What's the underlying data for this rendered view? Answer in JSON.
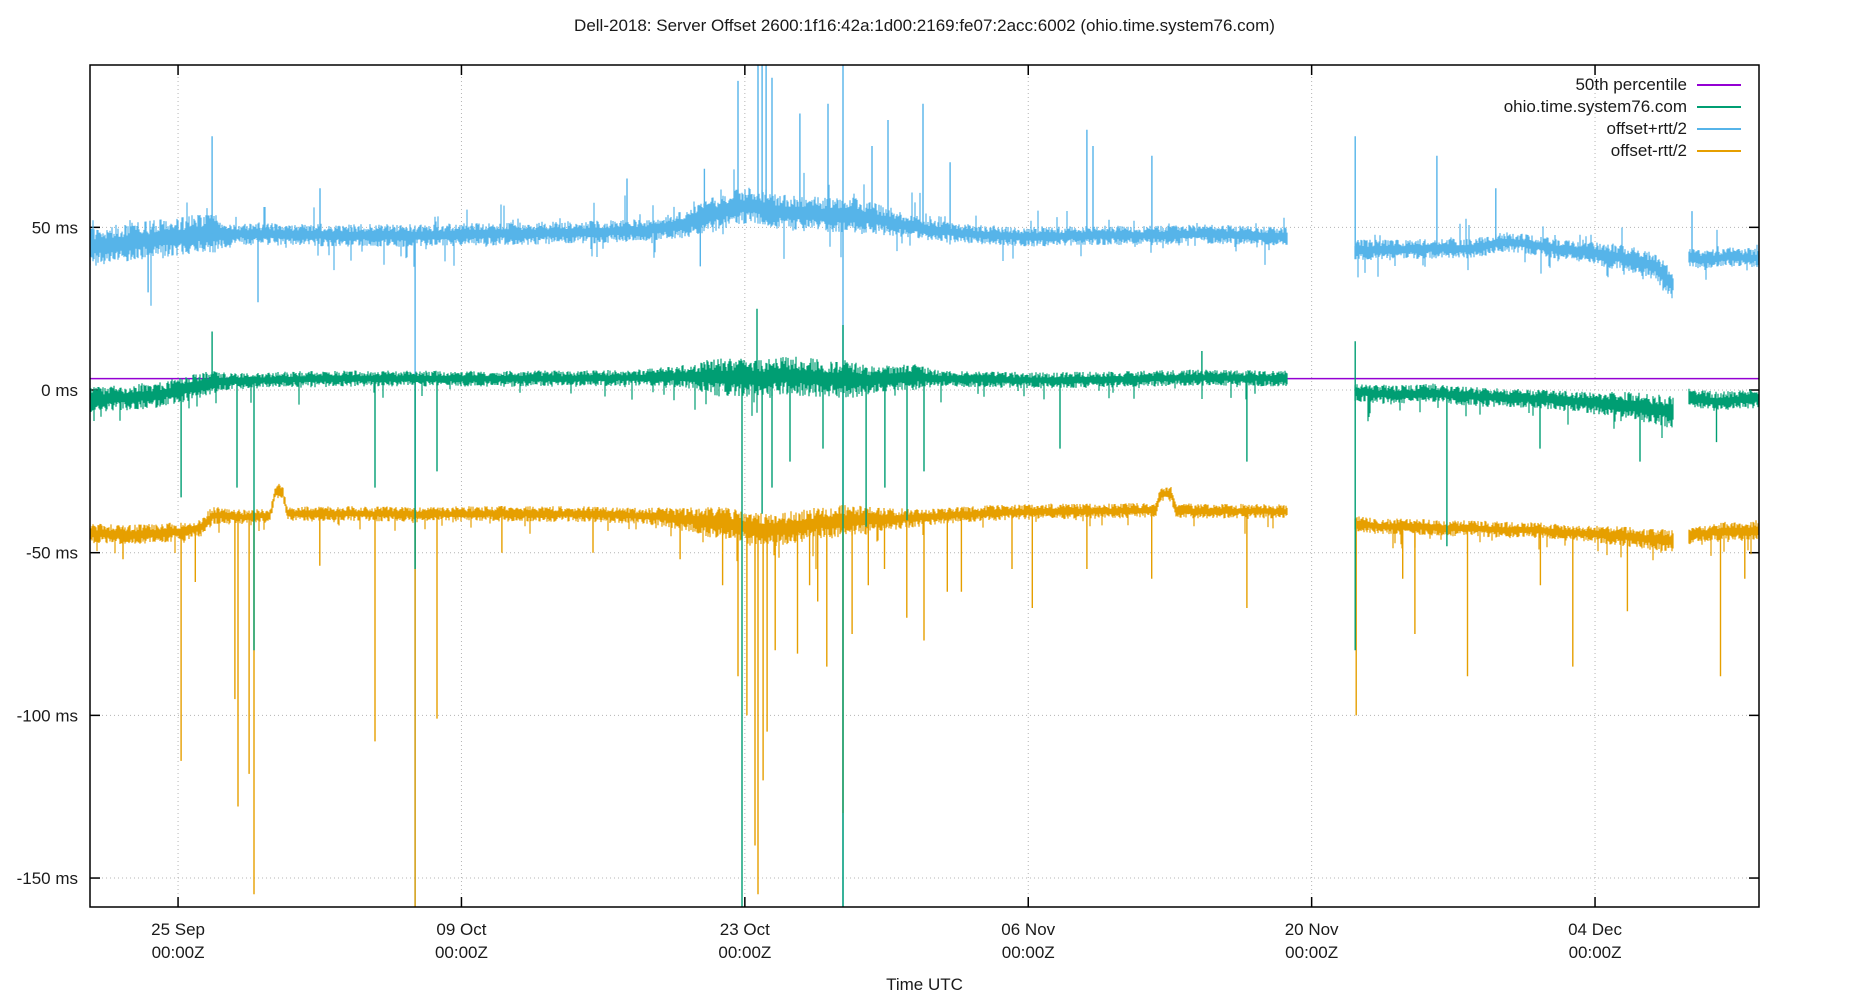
{
  "title": "Dell-2018: Server Offset 2600:1f16:42a:1d00:2169:fe07:2acc:6002 (ohio.time.system76.com)",
  "chart_data": {
    "type": "line",
    "title": "Dell-2018: Server Offset 2600:1f16:42a:1d00:2169:fe07:2acc:6002 (ohio.time.system76.com)",
    "xlabel": "Time UTC",
    "grid": true,
    "legend_position": "top-right",
    "x_axis": {
      "label": "Time UTC",
      "tick_sublabel": "00:00Z",
      "domain_days": [
        -4.35,
        78.1
      ],
      "ticks": [
        {
          "day": 0,
          "label": "25 Sep"
        },
        {
          "day": 14,
          "label": "09 Oct"
        },
        {
          "day": 28,
          "label": "23 Oct"
        },
        {
          "day": 42,
          "label": "06 Nov"
        },
        {
          "day": 56,
          "label": "20 Nov"
        },
        {
          "day": 70,
          "label": "04 Dec"
        }
      ]
    },
    "y_axis": {
      "unit": "ms",
      "domain": [
        -158.9,
        99.9
      ],
      "ticks": [
        {
          "value": 50,
          "label": "50 ms"
        },
        {
          "value": 0,
          "label": "0 ms"
        },
        {
          "value": -50,
          "label": "-50 ms"
        },
        {
          "value": -100,
          "label": "-100 ms"
        },
        {
          "value": -150,
          "label": "-150 ms"
        }
      ]
    },
    "gaps_days": [
      [
        54.8,
        58.1
      ],
      [
        73.9,
        74.6
      ]
    ],
    "series": [
      {
        "name": "50th percentile",
        "kind": "hline",
        "color": "#9400D3",
        "value_ms": 3.5
      },
      {
        "name": "offset+rtt/2",
        "kind": "noisy",
        "color": "#56B4E9",
        "tail_dir": "both",
        "baseline": [
          [
            -4.35,
            44
          ],
          [
            -3,
            45
          ],
          [
            -1.5,
            46
          ],
          [
            0,
            47
          ],
          [
            1,
            48
          ],
          [
            4,
            48
          ],
          [
            8,
            47.5
          ],
          [
            12,
            47.5
          ],
          [
            16,
            48
          ],
          [
            20,
            48.5
          ],
          [
            23,
            49
          ],
          [
            25,
            51
          ],
          [
            26.5,
            54
          ],
          [
            27.5,
            56
          ],
          [
            28.3,
            57
          ],
          [
            29.5,
            55
          ],
          [
            31,
            54
          ],
          [
            33,
            54
          ],
          [
            34.5,
            52.5
          ],
          [
            36,
            50.5
          ],
          [
            37.5,
            49
          ],
          [
            39,
            48
          ],
          [
            42,
            47
          ],
          [
            45,
            47.5
          ],
          [
            48,
            47.5
          ],
          [
            51,
            48
          ],
          [
            54.8,
            47
          ],
          [
            58.1,
            43
          ],
          [
            60,
            43
          ],
          [
            62,
            43.5
          ],
          [
            64,
            43.5
          ],
          [
            65.5,
            45.5
          ],
          [
            66.5,
            45
          ],
          [
            68,
            43.5
          ],
          [
            70,
            42
          ],
          [
            71.5,
            40.5
          ],
          [
            73,
            38
          ],
          [
            73.9,
            32
          ],
          [
            74.6,
            41
          ],
          [
            75.5,
            40
          ],
          [
            76.5,
            41
          ],
          [
            78.1,
            40.5
          ]
        ],
        "noise": [
          [
            -4.35,
            6
          ],
          [
            1.8,
            6
          ],
          [
            2.6,
            3.5
          ],
          [
            23.5,
            3.5
          ],
          [
            25,
            4.5
          ],
          [
            26.5,
            5.5
          ],
          [
            33.5,
            5.5
          ],
          [
            35.5,
            4
          ],
          [
            37.5,
            3
          ],
          [
            54.8,
            3
          ],
          [
            58.1,
            3.2
          ],
          [
            69,
            3
          ],
          [
            71,
            4
          ],
          [
            73.9,
            4.5
          ],
          [
            74.6,
            3
          ],
          [
            78.1,
            3
          ]
        ],
        "spikes": [
          [
            -1.48,
            30
          ],
          [
            1.68,
            78
          ],
          [
            3.95,
            27
          ],
          [
            7.01,
            62
          ],
          [
            11.71,
            -160
          ],
          [
            22.18,
            65
          ],
          [
            25.8,
            38
          ],
          [
            26.0,
            68
          ],
          [
            27.66,
            95
          ],
          [
            28.65,
            102
          ],
          [
            28.85,
            102
          ],
          [
            29.05,
            102
          ],
          [
            29.34,
            96
          ],
          [
            30.72,
            85
          ],
          [
            32.11,
            88
          ],
          [
            32.85,
            102
          ],
          [
            32.85,
            -160
          ],
          [
            34.28,
            75
          ],
          [
            35.07,
            83
          ],
          [
            36.8,
            88
          ],
          [
            38.14,
            70
          ],
          [
            44.9,
            80
          ],
          [
            45.2,
            75
          ],
          [
            48.11,
            72
          ],
          [
            58.15,
            78
          ],
          [
            62.19,
            72
          ],
          [
            65.1,
            62
          ],
          [
            74.79,
            55
          ]
        ]
      },
      {
        "name": "offset-rtt/2",
        "kind": "noisy",
        "color": "#E69F00",
        "tail_dir": "down",
        "baseline": [
          [
            -4.35,
            -44
          ],
          [
            -2.5,
            -44.5
          ],
          [
            -1,
            -44
          ],
          [
            0.3,
            -43.5
          ],
          [
            1.2,
            -42
          ],
          [
            1.75,
            -38.5
          ],
          [
            3.2,
            -39
          ],
          [
            4.55,
            -38.5
          ],
          [
            4.8,
            -31
          ],
          [
            5.15,
            -31
          ],
          [
            5.4,
            -38
          ],
          [
            8,
            -38
          ],
          [
            12,
            -38.2
          ],
          [
            16,
            -38
          ],
          [
            20,
            -38.2
          ],
          [
            23.5,
            -38.8
          ],
          [
            25.5,
            -40
          ],
          [
            27,
            -41
          ],
          [
            28.3,
            -42.5
          ],
          [
            29.5,
            -43
          ],
          [
            30.5,
            -42
          ],
          [
            31.5,
            -41
          ],
          [
            33,
            -40.2
          ],
          [
            35,
            -39.8
          ],
          [
            37,
            -39
          ],
          [
            39,
            -38.2
          ],
          [
            41,
            -37.6
          ],
          [
            43,
            -37.3
          ],
          [
            45,
            -37.3
          ],
          [
            47,
            -37.1
          ],
          [
            48.3,
            -37
          ],
          [
            48.55,
            -32
          ],
          [
            49.05,
            -32
          ],
          [
            49.3,
            -37
          ],
          [
            51,
            -37.3
          ],
          [
            53,
            -37.2
          ],
          [
            54.8,
            -37.4
          ],
          [
            58.1,
            -41
          ],
          [
            59.5,
            -42
          ],
          [
            61,
            -42
          ],
          [
            62.5,
            -42.5
          ],
          [
            64,
            -42.5
          ],
          [
            65.5,
            -43
          ],
          [
            67,
            -43
          ],
          [
            68.5,
            -43.8
          ],
          [
            70,
            -44.3
          ],
          [
            71.5,
            -45
          ],
          [
            73,
            -46
          ],
          [
            73.9,
            -46.5
          ],
          [
            74.6,
            -45
          ],
          [
            75.5,
            -44
          ],
          [
            76.5,
            -43.2
          ],
          [
            77.3,
            -43.5
          ],
          [
            78.1,
            -42.8
          ]
        ],
        "noise": [
          [
            -4.35,
            3
          ],
          [
            1.5,
            3
          ],
          [
            2.5,
            2.2
          ],
          [
            23,
            2.5
          ],
          [
            25.5,
            4
          ],
          [
            26.5,
            5
          ],
          [
            33,
            5
          ],
          [
            35,
            3.5
          ],
          [
            37.5,
            2.5
          ],
          [
            54.8,
            2.2
          ],
          [
            58.1,
            2.5
          ],
          [
            69,
            2.5
          ],
          [
            71,
            3
          ],
          [
            73.9,
            3.5
          ],
          [
            74.6,
            2.5
          ],
          [
            78.1,
            3
          ]
        ],
        "spikes": [
          [
            -2.72,
            -52
          ],
          [
            0.15,
            -114
          ],
          [
            0.85,
            -59
          ],
          [
            2.81,
            -95
          ],
          [
            2.96,
            -128
          ],
          [
            3.51,
            -118
          ],
          [
            3.75,
            -155
          ],
          [
            7.0,
            -54
          ],
          [
            9.73,
            -108
          ],
          [
            11.71,
            -160
          ],
          [
            12.79,
            -101
          ],
          [
            16.0,
            -50
          ],
          [
            20.5,
            -50
          ],
          [
            24.8,
            -52
          ],
          [
            26.9,
            -60
          ],
          [
            27.66,
            -88
          ],
          [
            28.1,
            -100
          ],
          [
            28.5,
            -140
          ],
          [
            28.65,
            -155
          ],
          [
            28.9,
            -120
          ],
          [
            29.1,
            -105
          ],
          [
            29.5,
            -80
          ],
          [
            30.6,
            -81
          ],
          [
            31.2,
            -60
          ],
          [
            31.6,
            -65
          ],
          [
            32.05,
            -85
          ],
          [
            32.85,
            -130
          ],
          [
            33.3,
            -75
          ],
          [
            34.1,
            -60
          ],
          [
            34.9,
            -55
          ],
          [
            36.0,
            -70
          ],
          [
            36.85,
            -77
          ],
          [
            38.0,
            -62
          ],
          [
            38.7,
            -62
          ],
          [
            41.2,
            -55
          ],
          [
            42.2,
            -67
          ],
          [
            44.9,
            -55
          ],
          [
            48.1,
            -58
          ],
          [
            52.8,
            -67
          ],
          [
            58.2,
            -100
          ],
          [
            60.5,
            -58
          ],
          [
            61.1,
            -75
          ],
          [
            63.7,
            -88
          ],
          [
            67.3,
            -60
          ],
          [
            68.9,
            -85
          ],
          [
            71.6,
            -68
          ],
          [
            76.2,
            -88
          ],
          [
            77.4,
            -58
          ]
        ]
      },
      {
        "name": "ohio.time.system76.com",
        "kind": "noisy",
        "color": "#009E73",
        "tail_dir": "down",
        "baseline": [
          [
            -4.35,
            -3
          ],
          [
            -3,
            -2.5
          ],
          [
            -1,
            -1.5
          ],
          [
            0.5,
            0.5
          ],
          [
            2,
            2.5
          ],
          [
            4,
            3
          ],
          [
            8,
            3.5
          ],
          [
            12,
            3.5
          ],
          [
            16,
            3.5
          ],
          [
            20,
            3.5
          ],
          [
            24,
            4
          ],
          [
            27,
            4
          ],
          [
            28.5,
            3.5
          ],
          [
            30,
            4.5
          ],
          [
            32,
            3.5
          ],
          [
            34,
            3
          ],
          [
            36,
            4
          ],
          [
            38,
            3.5
          ],
          [
            42,
            3
          ],
          [
            46,
            3.2
          ],
          [
            50,
            3.8
          ],
          [
            54.8,
            3.5
          ],
          [
            58.1,
            -0.5
          ],
          [
            60,
            -1.5
          ],
          [
            62,
            -1
          ],
          [
            64,
            -2
          ],
          [
            66,
            -2.5
          ],
          [
            68,
            -3
          ],
          [
            70,
            -4
          ],
          [
            71.5,
            -4.5
          ],
          [
            73,
            -6
          ],
          [
            73.9,
            -7
          ],
          [
            74.6,
            -2.5
          ],
          [
            76,
            -3.5
          ],
          [
            78.1,
            -2.5
          ]
        ],
        "noise": [
          [
            -4.35,
            4
          ],
          [
            1.5,
            4
          ],
          [
            2.5,
            2.5
          ],
          [
            23,
            2.5
          ],
          [
            25.5,
            4
          ],
          [
            26.5,
            6
          ],
          [
            33,
            6
          ],
          [
            34.5,
            4
          ],
          [
            36.5,
            4
          ],
          [
            37.5,
            2.5
          ],
          [
            54.8,
            2.5
          ],
          [
            58.1,
            3
          ],
          [
            69,
            3
          ],
          [
            71,
            4
          ],
          [
            73.9,
            5
          ],
          [
            74.6,
            3
          ],
          [
            78.1,
            3
          ]
        ],
        "spikes": [
          [
            0.15,
            -33
          ],
          [
            1.68,
            18
          ],
          [
            2.91,
            -30
          ],
          [
            3.75,
            -80
          ],
          [
            9.73,
            -30
          ],
          [
            11.71,
            -55
          ],
          [
            12.79,
            -25
          ],
          [
            27.86,
            -160
          ],
          [
            28.6,
            25
          ],
          [
            28.85,
            -38
          ],
          [
            29.34,
            -30
          ],
          [
            30.23,
            -22
          ],
          [
            31.86,
            -18
          ],
          [
            32.85,
            20
          ],
          [
            32.85,
            -160
          ],
          [
            33.99,
            -42
          ],
          [
            34.92,
            -30
          ],
          [
            36.01,
            -40
          ],
          [
            36.85,
            -25
          ],
          [
            43.57,
            -18
          ],
          [
            50.58,
            12
          ],
          [
            52.8,
            -22
          ],
          [
            58.15,
            -80
          ],
          [
            58.15,
            15
          ],
          [
            62.68,
            -48
          ],
          [
            67.28,
            -18
          ],
          [
            72.22,
            -22
          ],
          [
            76.0,
            -16
          ]
        ]
      }
    ]
  }
}
